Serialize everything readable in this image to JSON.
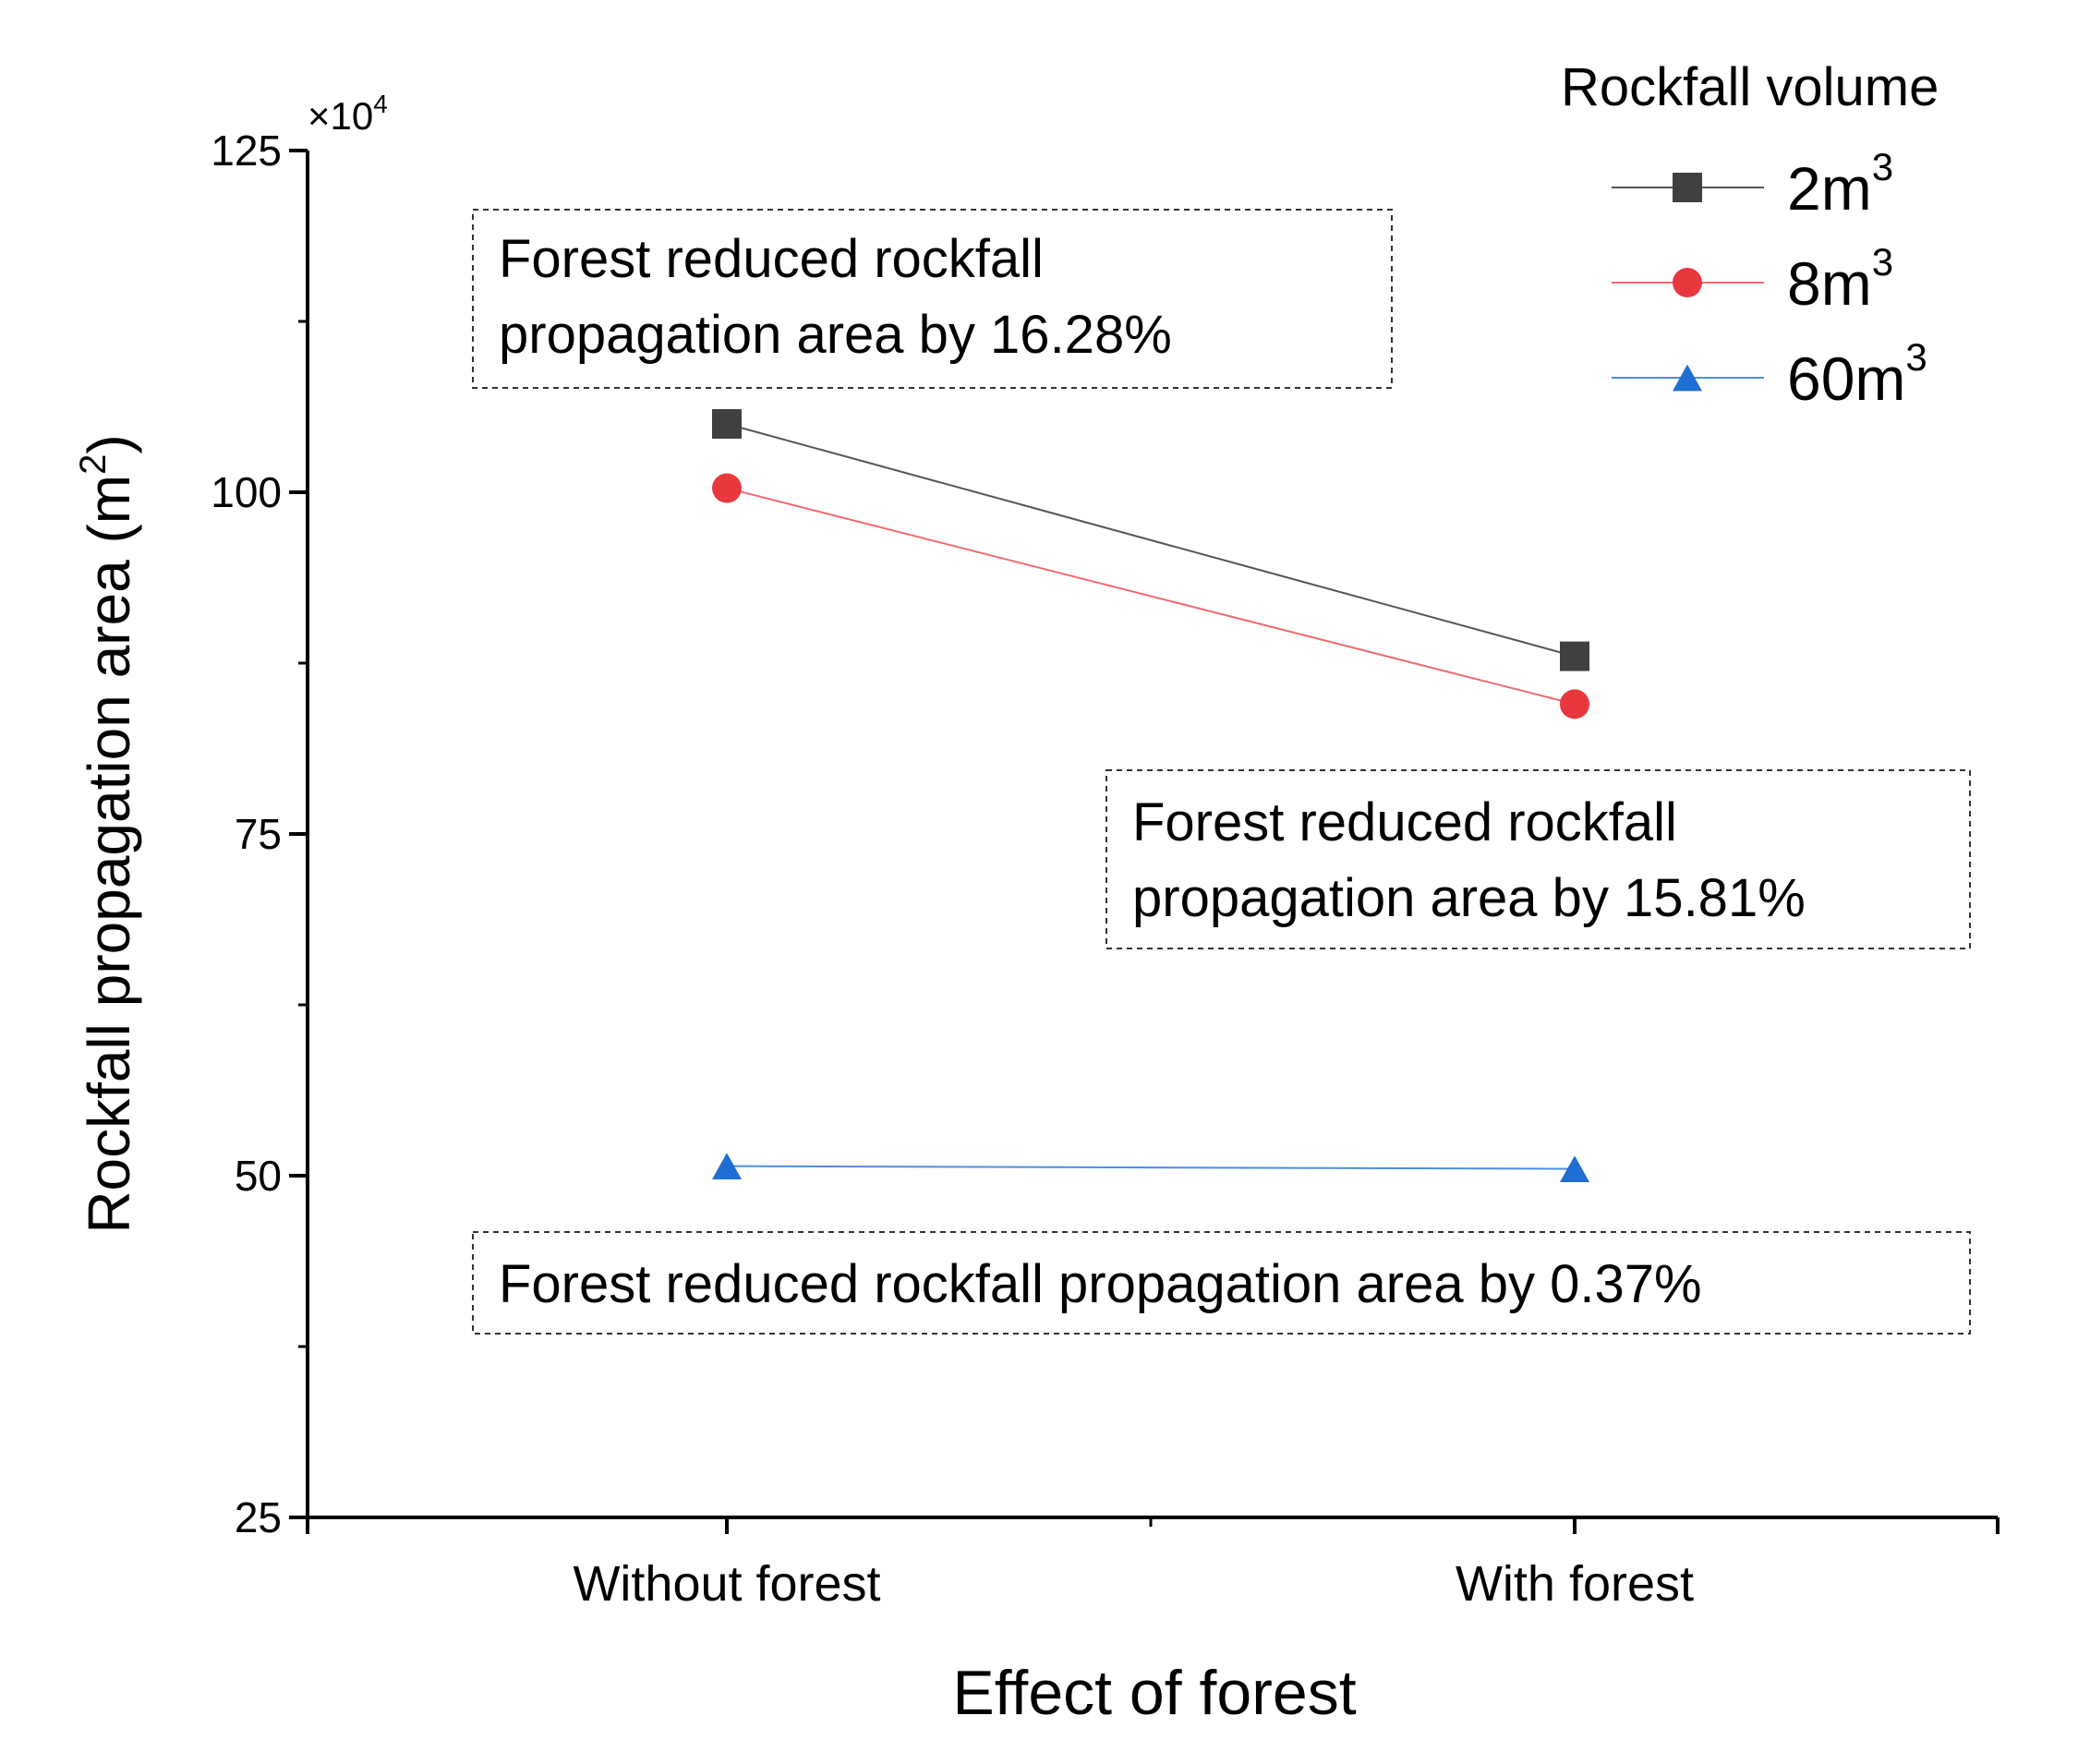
{
  "chart_data": {
    "type": "line",
    "title": "",
    "xlabel": "Effect of forest",
    "ylabel": "Rockfall propagation area (m",
    "ylabel_sup": "2",
    "ylabel_close": ")",
    "y_multiplier_base": "×10",
    "y_multiplier_exp": "4",
    "categories": [
      "Without forest",
      "With forest"
    ],
    "ylim": [
      25,
      125
    ],
    "yticks": [
      25,
      50,
      75,
      100,
      125
    ],
    "ytick_labels": [
      "25",
      "50",
      "75",
      "100",
      "125"
    ],
    "yminor": [
      37.5,
      62.5,
      87.5,
      112.5
    ],
    "series": [
      {
        "name": "2m",
        "sup": "3",
        "marker": "square",
        "color": "#404040",
        "line_color": "#555555",
        "values": [
          105,
          88
        ]
      },
      {
        "name": "8m",
        "sup": "3",
        "marker": "circle",
        "color": "#e8383d",
        "line_color": "#f06b6f",
        "values": [
          100.3,
          84.5
        ]
      },
      {
        "name": "60m",
        "sup": "3",
        "marker": "triangle",
        "color": "#1f6ed4",
        "line_color": "#4a8ee6",
        "values": [
          50.7,
          50.5
        ]
      }
    ],
    "legend": {
      "title": "Rockfall volume",
      "placement": "top-right"
    },
    "annotations": [
      {
        "lines": [
          "Forest reduced rockfall",
          "propagation area by 16.28%"
        ],
        "color": "#000000"
      },
      {
        "lines": [
          "Forest reduced rockfall",
          "propagation area by 15.81%"
        ],
        "color": "#ee1c25"
      },
      {
        "lines": [
          "Forest reduced rockfall propagation area by 0.37%"
        ],
        "color": "#4a72c4"
      }
    ]
  }
}
